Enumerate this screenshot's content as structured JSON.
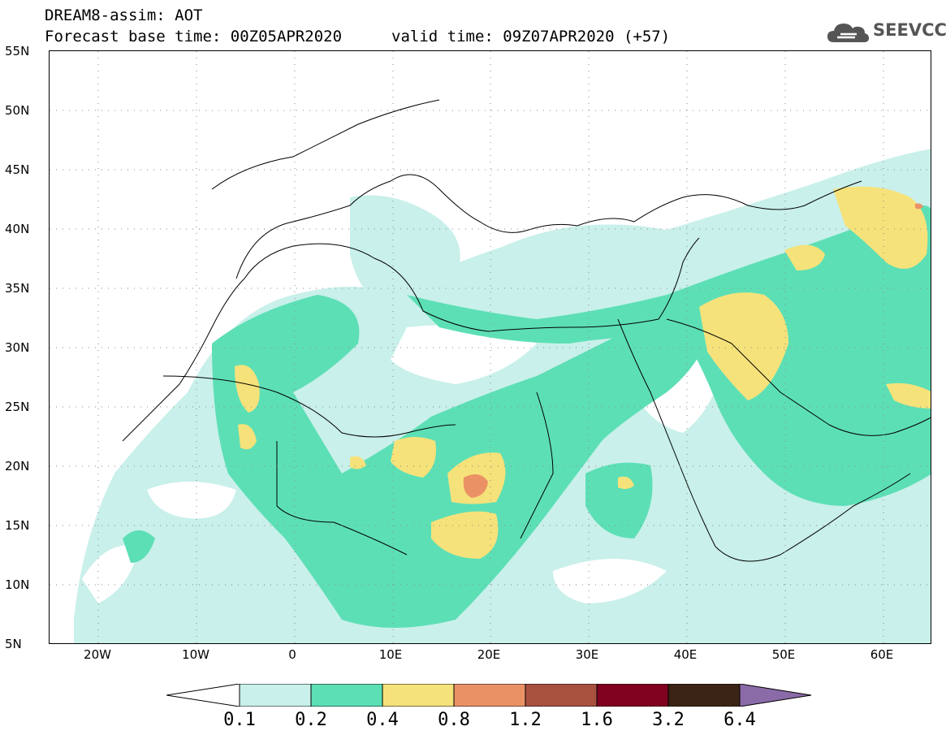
{
  "title": {
    "line1": "DREAM8-assim: AOT",
    "line2": "Forecast base time: 00Z05APR2020",
    "line3": "valid time: 09Z07APR2020 (+57)"
  },
  "logo": {
    "text": "SEEVCCC",
    "icon": "cloud-icon"
  },
  "map": {
    "lon_range": [
      -25,
      65
    ],
    "lat_range": [
      5,
      55
    ],
    "lat_ticks": [
      "55N",
      "50N",
      "45N",
      "40N",
      "35N",
      "30N",
      "25N",
      "20N",
      "15N",
      "10N",
      "5N"
    ],
    "lon_ticks": [
      "20W",
      "10W",
      "0",
      "10E",
      "20E",
      "30E",
      "40E",
      "50E",
      "60E"
    ],
    "grid": "dotted"
  },
  "colorbar": {
    "labels": [
      "0.1",
      "0.2",
      "0.4",
      "0.8",
      "1.2",
      "1.6",
      "3.2",
      "6.4"
    ],
    "colors": [
      "#ffffff",
      "#c9f0ea",
      "#5ddfb6",
      "#f6e27a",
      "#ea9266",
      "#a9513f",
      "#800020",
      "#3b2415",
      "#8b6aa8"
    ]
  }
}
